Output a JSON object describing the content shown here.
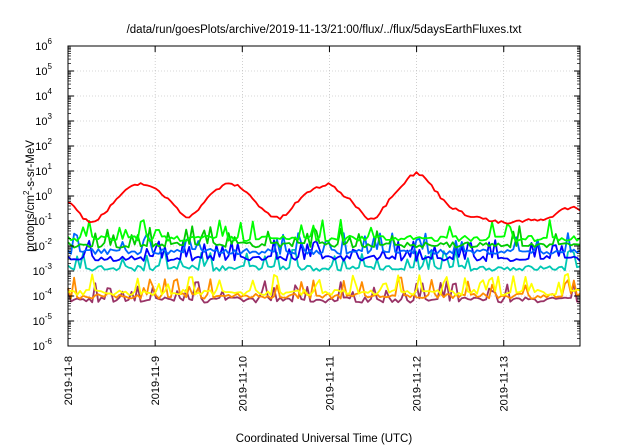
{
  "chart_data": {
    "type": "line",
    "title": "/data/run/goesPlots/archive/2019-11-13/21:00/flux/../flux/5daysEarthFluxes.txt",
    "xlabel": "Coordinated Universal Time (UTC)",
    "ylabel": {
      "pre": "protons/cm",
      "sup": "2",
      "post": "-s-sr-MeV"
    },
    "yscale": "log",
    "ylim": [
      1e-06,
      1000000.0
    ],
    "y_ticks": [
      {
        "base": "10",
        "exp": "-6"
      },
      {
        "base": "10",
        "exp": "-5"
      },
      {
        "base": "10",
        "exp": "-4"
      },
      {
        "base": "10",
        "exp": "-3"
      },
      {
        "base": "10",
        "exp": "-2"
      },
      {
        "base": "10",
        "exp": "-1"
      },
      {
        "base": "10",
        "exp": "0"
      },
      {
        "base": "10",
        "exp": "1"
      },
      {
        "base": "10",
        "exp": "2"
      },
      {
        "base": "10",
        "exp": "3"
      },
      {
        "base": "10",
        "exp": "4"
      },
      {
        "base": "10",
        "exp": "5"
      },
      {
        "base": "10",
        "exp": "6"
      }
    ],
    "xlim": [
      "2019-11-08 00:00",
      "2019-11-13 21:00"
    ],
    "x_ticks": [
      "2019-11-8",
      "2019-11-9",
      "2019-11-10",
      "2019-11-11",
      "2019-11-12",
      "2019-11-13"
    ],
    "grid": true,
    "legend": "none",
    "series": [
      {
        "color": "#ff0000",
        "base": 0.5,
        "values": [
          0.6,
          0.3,
          0.12,
          0.09,
          0.15,
          0.3,
          0.8,
          1.5,
          2.5,
          3.2,
          2.6,
          1.6,
          0.9,
          0.5,
          0.2,
          0.13,
          0.3,
          0.7,
          1.5,
          2.6,
          3.1,
          2.5,
          1.4,
          0.6,
          0.3,
          0.16,
          0.12,
          0.2,
          0.5,
          1.0,
          1.8,
          2.4,
          2.9,
          2.0,
          1.0,
          0.6,
          0.25,
          0.12,
          0.15,
          0.4,
          1.2,
          2.5,
          6.0,
          8.5,
          5.0,
          2.0,
          0.8,
          0.4,
          0.25,
          0.18,
          0.15,
          0.13,
          0.1,
          0.09,
          0.08,
          0.09,
          0.1,
          0.11,
          0.1,
          0.12,
          0.2,
          0.3,
          0.35,
          0.3
        ]
      },
      {
        "color": "#00ff00",
        "base": 0.02,
        "values": []
      },
      {
        "color": "#00cc00",
        "base": 0.011,
        "values": []
      },
      {
        "color": "#0066ff",
        "base": 0.006,
        "values": []
      },
      {
        "color": "#0000ff",
        "base": 0.0032,
        "values": []
      },
      {
        "color": "#00c8b4",
        "base": 0.0013,
        "values": []
      },
      {
        "color": "#ffff00",
        "base": 0.00014,
        "values": []
      },
      {
        "color": "#ff8c00",
        "base": 0.0001,
        "values": []
      },
      {
        "color": "#993366",
        "base": 7e-05,
        "values": []
      }
    ]
  }
}
